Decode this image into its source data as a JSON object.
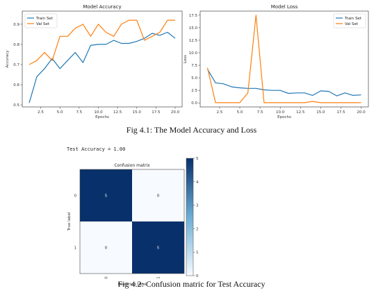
{
  "figure1": {
    "caption": "Fig 4.1: The Model Accuracy and Loss"
  },
  "figure2": {
    "test_accuracy_text": "Test Accuracy = 1.00",
    "caption": "Fig 4.2: Confusion matric for Test Accuracy"
  },
  "colors": {
    "train": "#1f77b4",
    "val": "#ff7f0e",
    "cm_dark": "#08306b",
    "cm_light": "#f7fbff"
  },
  "chart_data": [
    {
      "type": "line",
      "title": "Model Accuracy",
      "xlabel": "Epochs",
      "ylabel": "Accuracy",
      "xlim": [
        0.1,
        20.9
      ],
      "ylim": [
        0.49,
        0.965
      ],
      "xticks": [
        "2.5",
        "5.0",
        "7.5",
        "10.0",
        "12.5",
        "15.0",
        "17.5",
        "20.0"
      ],
      "yticks": [
        "0.5",
        "0.6",
        "0.7",
        "0.8",
        "0.9"
      ],
      "legend": "top-left",
      "x": [
        1,
        2,
        3,
        4,
        5,
        6,
        7,
        8,
        9,
        10,
        11,
        12,
        13,
        14,
        15,
        16,
        17,
        18,
        19,
        20
      ],
      "series": [
        {
          "name": "Train Set",
          "color": "#1f77b4",
          "values": [
            0.51,
            0.64,
            0.68,
            0.73,
            0.68,
            0.72,
            0.76,
            0.71,
            0.795,
            0.8,
            0.8,
            0.82,
            0.805,
            0.805,
            0.815,
            0.83,
            0.855,
            0.845,
            0.86,
            0.83
          ]
        },
        {
          "name": "Val Set",
          "color": "#ff7f0e",
          "values": [
            0.7,
            0.72,
            0.76,
            0.72,
            0.84,
            0.84,
            0.88,
            0.9,
            0.84,
            0.9,
            0.86,
            0.84,
            0.9,
            0.92,
            0.92,
            0.82,
            0.84,
            0.86,
            0.92,
            0.92
          ]
        }
      ]
    },
    {
      "type": "line",
      "title": "Model Loss",
      "xlabel": "Epochs",
      "ylabel": "Loss",
      "xlim": [
        0.1,
        20.9
      ],
      "ylim": [
        -0.8,
        18.3
      ],
      "xticks": [
        "2.5",
        "5.0",
        "7.5",
        "10.0",
        "12.5",
        "15.0",
        "17.5",
        "20.0"
      ],
      "yticks": [
        "0.0",
        "2.5",
        "5.0",
        "7.5",
        "10.0",
        "12.5",
        "15.0",
        "17.5"
      ],
      "legend": "top-right",
      "x": [
        1,
        2,
        3,
        4,
        5,
        6,
        7,
        8,
        9,
        10,
        11,
        12,
        13,
        14,
        15,
        16,
        17,
        18,
        19,
        20
      ],
      "series": [
        {
          "name": "Train Set",
          "color": "#1f77b4",
          "values": [
            6.7,
            4.0,
            3.8,
            3.2,
            3.0,
            2.9,
            2.9,
            2.6,
            2.5,
            2.5,
            1.9,
            2.0,
            2.0,
            1.5,
            2.4,
            2.3,
            1.4,
            2.0,
            1.5,
            1.6
          ]
        },
        {
          "name": "Val Set",
          "color": "#ff7f0e",
          "values": [
            7.0,
            0.05,
            0.05,
            0.05,
            0.05,
            2.0,
            17.5,
            0.05,
            0.05,
            0.05,
            0.05,
            0.05,
            0.05,
            0.3,
            0.05,
            0.05,
            0.05,
            0.05,
            0.05,
            0.05
          ]
        }
      ]
    },
    {
      "type": "heatmap",
      "title": "Confusion matrix",
      "xlabel": "Predicted label",
      "ylabel": "True label",
      "xticks": [
        "0",
        "1"
      ],
      "yticks": [
        "0",
        "1"
      ],
      "matrix": [
        [
          5,
          0
        ],
        [
          0,
          5
        ]
      ],
      "colorbar_ticks": [
        0,
        1,
        2,
        3,
        4,
        5
      ],
      "vmin": 0,
      "vmax": 5
    }
  ]
}
